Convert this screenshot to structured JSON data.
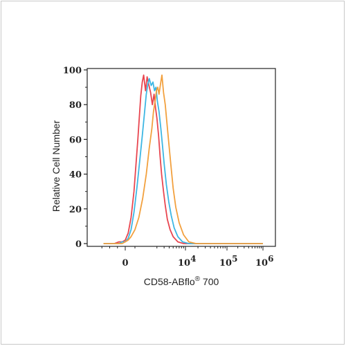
{
  "chart_data": {
    "type": "line",
    "xlabel_main": "CD58-ABflo",
    "xlabel_reg": "®",
    "xlabel_tail": " 700",
    "ylabel": "Relative Cell Number",
    "ylim": [
      0,
      100
    ],
    "y_ticks": [
      "0",
      "20",
      "40",
      "60",
      "80",
      "100"
    ],
    "x_ticks": [
      {
        "base": "0",
        "exp": ""
      },
      {
        "base": "10",
        "exp": "4"
      },
      {
        "base": "10",
        "exp": "5"
      },
      {
        "base": "10",
        "exp": "6"
      }
    ],
    "x_ticks_data": [
      0,
      10000,
      100000,
      1000000
    ],
    "xlim": [
      -2000,
      1500000
    ],
    "grid": false,
    "series": [
      {
        "color": "#e8454f",
        "x": [
          -1400,
          -700,
          -400,
          -200,
          0,
          150,
          300,
          450,
          550,
          650,
          720,
          800,
          880,
          950,
          1050,
          1150,
          1250,
          1400,
          1550,
          1700,
          1850,
          2000,
          2200,
          2400,
          2600,
          2900,
          3200,
          3600,
          4200,
          5000,
          6500,
          9000,
          20000,
          100000,
          1000000
        ],
        "y": [
          0,
          0,
          1,
          1,
          2,
          6,
          15,
          30,
          45,
          60,
          72,
          85,
          93,
          97,
          88,
          96,
          92,
          87,
          80,
          86,
          78,
          72,
          62,
          50,
          40,
          30,
          22,
          14,
          8,
          4,
          1,
          0,
          0,
          0,
          0
        ]
      },
      {
        "color": "#3cb6e3",
        "x": [
          -1400,
          -700,
          -400,
          -200,
          0,
          150,
          300,
          450,
          600,
          750,
          880,
          1000,
          1100,
          1200,
          1300,
          1450,
          1600,
          1750,
          1900,
          2050,
          2250,
          2500,
          2750,
          3000,
          3400,
          3900,
          4500,
          5300,
          6500,
          8500,
          12000,
          100000,
          1000000
        ],
        "y": [
          0,
          0,
          0,
          1,
          1,
          3,
          8,
          18,
          32,
          48,
          62,
          76,
          86,
          92,
          95,
          91,
          93,
          88,
          90,
          82,
          76,
          66,
          56,
          46,
          34,
          24,
          16,
          9,
          4,
          1,
          0,
          0,
          0
        ]
      },
      {
        "color": "#f2a03d",
        "x": [
          -1400,
          -700,
          -400,
          -200,
          0,
          150,
          300,
          500,
          700,
          900,
          1100,
          1300,
          1500,
          1650,
          1800,
          1950,
          2100,
          2250,
          2450,
          2650,
          2900,
          3200,
          3500,
          3900,
          4400,
          5000,
          5800,
          7000,
          9000,
          12000,
          18000,
          100000,
          1000000
        ],
        "y": [
          0,
          0,
          0,
          0,
          1,
          2,
          4,
          8,
          15,
          26,
          40,
          55,
          66,
          76,
          82,
          88,
          90,
          86,
          92,
          97,
          87,
          80,
          70,
          58,
          45,
          32,
          21,
          12,
          5,
          1,
          0,
          0,
          0
        ]
      }
    ]
  }
}
